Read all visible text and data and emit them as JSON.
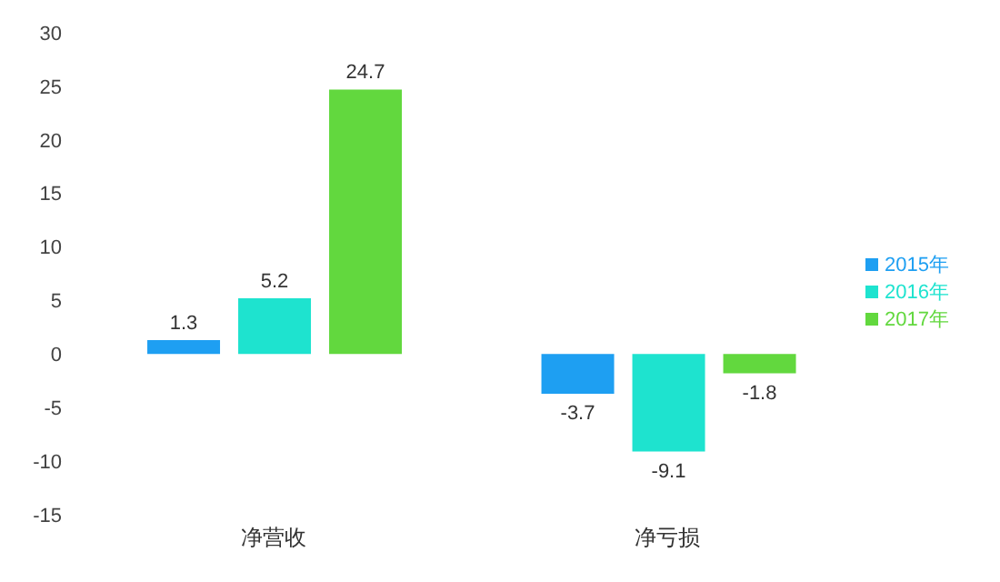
{
  "chart_data": {
    "type": "bar",
    "categories": [
      "净营收",
      "净亏损"
    ],
    "series": [
      {
        "name": "2015年",
        "color": "#1e9ff2",
        "values": [
          1.3,
          -3.7
        ]
      },
      {
        "name": "2016年",
        "color": "#1ee3cf",
        "values": [
          5.2,
          -9.1
        ]
      },
      {
        "name": "2017年",
        "color": "#62d83e",
        "values": [
          24.7,
          -1.8
        ]
      }
    ],
    "ylim": [
      -15,
      30
    ],
    "yticks": [
      -15,
      -10,
      -5,
      0,
      5,
      10,
      15,
      20,
      25,
      30
    ],
    "grid": false,
    "legend": "right",
    "data_labels": true
  }
}
